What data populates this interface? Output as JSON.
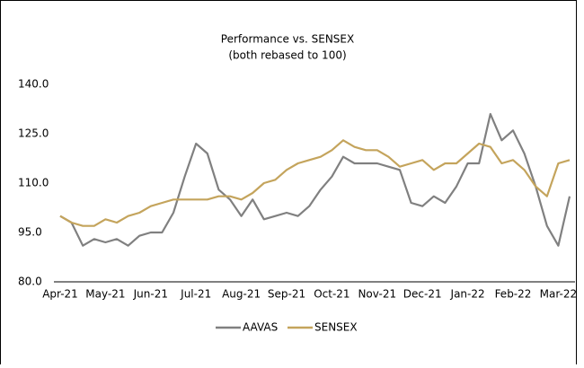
{
  "chart_data": {
    "type": "line",
    "title": "Performance vs. SENSEX",
    "subtitle": "(both rebased to 100)",
    "categories": [
      "Apr-21",
      null,
      null,
      null,
      "May-21",
      null,
      null,
      null,
      "Jun-21",
      null,
      null,
      null,
      "Jul-21",
      null,
      null,
      null,
      "Aug-21",
      null,
      null,
      null,
      "Sep-21",
      null,
      null,
      null,
      "Oct-21",
      null,
      null,
      null,
      "Nov-21",
      null,
      null,
      null,
      "Dec-21",
      null,
      null,
      null,
      "Jan-22",
      null,
      null,
      null,
      "Feb-22",
      null,
      null,
      null,
      "Mar-22",
      null
    ],
    "series": [
      {
        "name": "AAVAS",
        "color": "#808080",
        "values": [
          100,
          98,
          91,
          93,
          92,
          93,
          91,
          94,
          95,
          95,
          101,
          112,
          122,
          119,
          108,
          105,
          100,
          105,
          99,
          100,
          101,
          100,
          103,
          108,
          112,
          118,
          116,
          116,
          116,
          115,
          114,
          104,
          103,
          106,
          104,
          109,
          116,
          116,
          131,
          123,
          126,
          119,
          109,
          97,
          91,
          106
        ]
      },
      {
        "name": "SENSEX",
        "color": "#c4a45c",
        "values": [
          100,
          98,
          97,
          97,
          99,
          98,
          100,
          101,
          103,
          104,
          105,
          105,
          105,
          105,
          106,
          106,
          105,
          107,
          110,
          111,
          114,
          116,
          117,
          118,
          120,
          123,
          121,
          120,
          120,
          118,
          115,
          116,
          117,
          114,
          116,
          116,
          119,
          122,
          121,
          116,
          117,
          114,
          109,
          106,
          116,
          117
        ]
      }
    ],
    "ylim": [
      80,
      140
    ],
    "yticks": [
      {
        "value": 80,
        "label": "80.0"
      },
      {
        "value": 95,
        "label": "95.0"
      },
      {
        "value": 110,
        "label": "110.0"
      },
      {
        "value": 125,
        "label": "125.0"
      },
      {
        "value": 140,
        "label": "140.0"
      }
    ],
    "legend": "bottom"
  }
}
